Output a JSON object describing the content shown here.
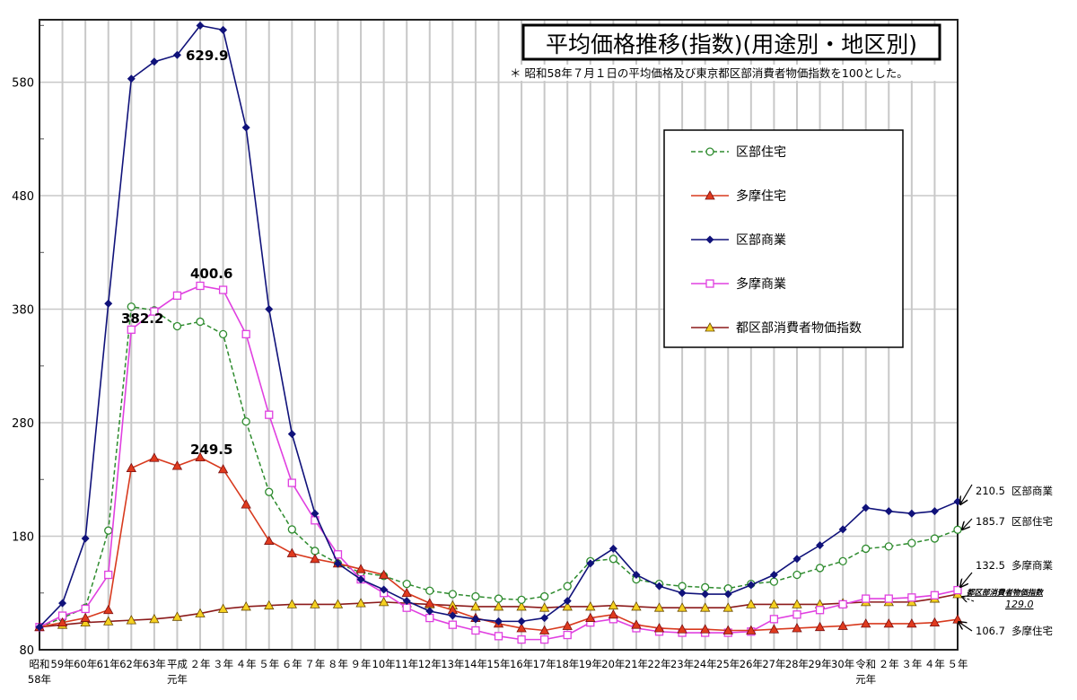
{
  "chart_data": {
    "type": "line",
    "title": "平均価格推移(指数)(用途別・地区別)",
    "subtitle": "＊ 昭和58年７月１日の平均価格及び東京都区部消費者物価指数を100とした。",
    "xlabel": "",
    "ylabel": "",
    "ylim": [
      80,
      635
    ],
    "yticks": [
      80,
      180,
      280,
      380,
      480,
      580
    ],
    "grid": "vertical lines at every year; horizontal lines at each labelled y tick",
    "legend_position": "upper-right",
    "categories": [
      [
        "昭和",
        "58年"
      ],
      [
        "59年",
        ""
      ],
      [
        "60年",
        ""
      ],
      [
        "61年",
        ""
      ],
      [
        "62年",
        ""
      ],
      [
        "63年",
        ""
      ],
      [
        "平成",
        "元年"
      ],
      [
        "２年",
        ""
      ],
      [
        "３年",
        ""
      ],
      [
        "４年",
        ""
      ],
      [
        "５年",
        ""
      ],
      [
        "６年",
        ""
      ],
      [
        "７年",
        ""
      ],
      [
        "８年",
        ""
      ],
      [
        "９年",
        ""
      ],
      [
        "10年",
        ""
      ],
      [
        "11年",
        ""
      ],
      [
        "12年",
        ""
      ],
      [
        "13年",
        ""
      ],
      [
        "14年",
        ""
      ],
      [
        "15年",
        ""
      ],
      [
        "16年",
        ""
      ],
      [
        "17年",
        ""
      ],
      [
        "18年",
        ""
      ],
      [
        "19年",
        ""
      ],
      [
        "20年",
        ""
      ],
      [
        "21年",
        ""
      ],
      [
        "22年",
        ""
      ],
      [
        "23年",
        ""
      ],
      [
        "24年",
        ""
      ],
      [
        "25年",
        ""
      ],
      [
        "26年",
        ""
      ],
      [
        "27年",
        ""
      ],
      [
        "28年",
        ""
      ],
      [
        "29年",
        ""
      ],
      [
        "30年",
        ""
      ],
      [
        "令和",
        "元年"
      ],
      [
        "２年",
        ""
      ],
      [
        "３年",
        ""
      ],
      [
        "４年",
        ""
      ],
      [
        "５年",
        ""
      ]
    ],
    "series": [
      {
        "name": "区部住宅",
        "color": "#2e8b2e",
        "marker": "circle",
        "dashed": true,
        "values": [
          100,
          108,
          117,
          185,
          382.2,
          379,
          365,
          369,
          358,
          281,
          219,
          186,
          167,
          156,
          148,
          145,
          138,
          132,
          129,
          127,
          125,
          124,
          127,
          136,
          158,
          160,
          142,
          138,
          136,
          135,
          134,
          138,
          140,
          146,
          152,
          158,
          169,
          171,
          174,
          178,
          185.7
        ]
      },
      {
        "name": "多摩住宅",
        "color": "#d83a1e",
        "marker": "triangle-red",
        "dashed": false,
        "values": [
          100,
          104,
          108,
          115,
          240,
          249,
          242,
          249.5,
          239,
          208,
          176,
          165,
          160,
          156,
          151,
          146,
          130,
          121,
          115,
          108,
          103,
          99,
          97,
          101,
          108,
          111,
          102,
          99,
          98,
          98,
          97,
          97,
          98,
          99,
          100,
          101,
          103,
          103,
          103,
          104,
          106.7
        ]
      },
      {
        "name": "区部商業",
        "color": "#10127a",
        "marker": "diamond",
        "dashed": false,
        "values": [
          100,
          121,
          178,
          385,
          583,
          598,
          604,
          629.9,
          626,
          540,
          380,
          270,
          200,
          156,
          142,
          133,
          123,
          114,
          110,
          107,
          105,
          105,
          108,
          123,
          156,
          169,
          146,
          136,
          130,
          129,
          129,
          137,
          146,
          160,
          172,
          186,
          205,
          202,
          200,
          202,
          210.5
        ]
      },
      {
        "name": "多摩商業",
        "color": "#e040e0",
        "marker": "square",
        "dashed": false,
        "values": [
          100,
          110,
          116,
          146,
          362,
          378,
          392,
          400.6,
          397,
          358,
          287,
          227,
          194,
          164,
          142,
          130,
          117,
          108,
          102,
          97,
          92,
          89,
          89,
          93,
          104,
          107,
          99,
          96,
          95,
          95,
          95,
          96,
          107,
          111,
          115,
          120,
          125,
          125,
          126,
          128,
          132.5
        ]
      },
      {
        "name": "都区部消費者物価指数",
        "color": "#8b1a1a",
        "marker": "triangle-yellow",
        "dashed": false,
        "values": [
          100,
          102,
          104,
          105,
          106,
          107,
          109,
          112,
          116,
          118,
          119,
          120,
          120,
          120,
          121,
          122,
          121,
          120,
          119,
          118,
          118,
          118,
          117,
          118,
          118,
          119,
          118,
          117,
          117,
          117,
          117,
          120,
          120,
          120,
          120,
          121,
          122,
          122,
          122,
          125,
          129.0
        ]
      }
    ],
    "annotations": [
      {
        "text": "629.9",
        "series": "区部商業",
        "index": 7
      },
      {
        "text": "400.6",
        "series": "多摩商業",
        "index": 7
      },
      {
        "text": "382.2",
        "series": "区部住宅",
        "index": 4
      },
      {
        "text": "249.5",
        "series": "多摩住宅",
        "index": 7
      }
    ],
    "end_labels": [
      {
        "value": "210.5",
        "name": "区部商業"
      },
      {
        "value": "185.7",
        "name": "区部住宅"
      },
      {
        "value": "132.5",
        "name": "多摩商業"
      },
      {
        "value": "129.0",
        "name": "都区部消費者物価指数"
      },
      {
        "value": "106.7",
        "name": "多摩住宅"
      }
    ]
  }
}
